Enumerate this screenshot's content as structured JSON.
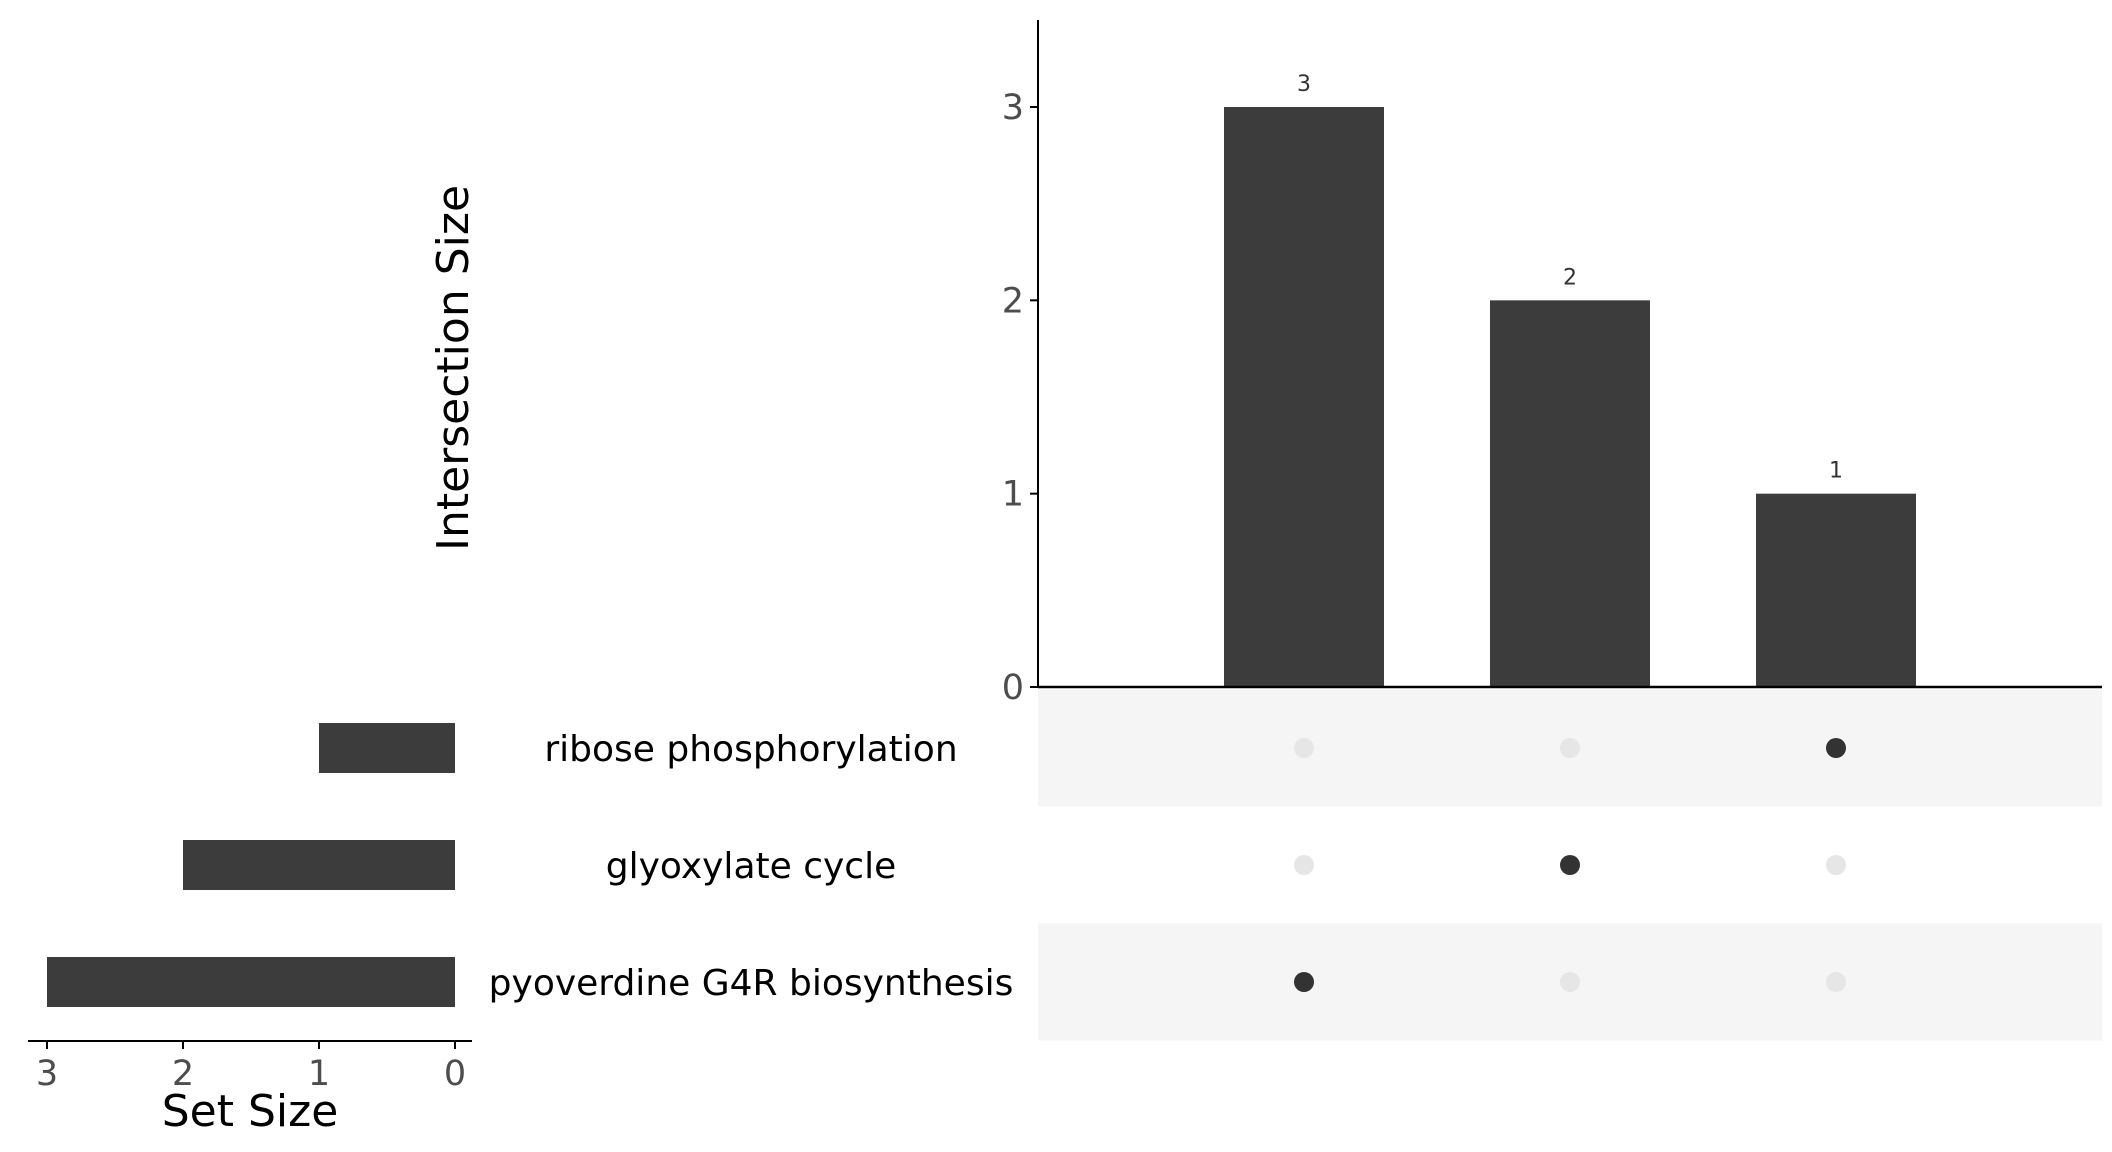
{
  "chart_data": {
    "type": "upset",
    "intersection_axis": {
      "title": "Intersection Size",
      "ylim": [
        0,
        3.45
      ],
      "ticks": [
        "0",
        "1",
        "2",
        "3"
      ]
    },
    "intersections": [
      {
        "value": 3,
        "label": "3",
        "members": [
          "pyoverdine G4R biosynthesis"
        ]
      },
      {
        "value": 2,
        "label": "2",
        "members": [
          "glyoxylate cycle"
        ]
      },
      {
        "value": 1,
        "label": "1",
        "members": [
          "ribose phosphorylation"
        ]
      }
    ],
    "sets": [
      {
        "name": "ribose phosphorylation",
        "size": 1
      },
      {
        "name": "glyoxylate cycle",
        "size": 2
      },
      {
        "name": "pyoverdine G4R biosynthesis",
        "size": 3
      }
    ],
    "set_size_axis": {
      "title": "Set Size",
      "xlim": [
        0,
        3.15
      ],
      "ticks": [
        "3",
        "2",
        "1",
        "0"
      ]
    },
    "colors": {
      "bar": "#3c3c3c",
      "dot_active": "#333333",
      "dot_inactive": "#e6e6e6",
      "stripe": "#f5f5f5",
      "axis": "#000000"
    }
  }
}
